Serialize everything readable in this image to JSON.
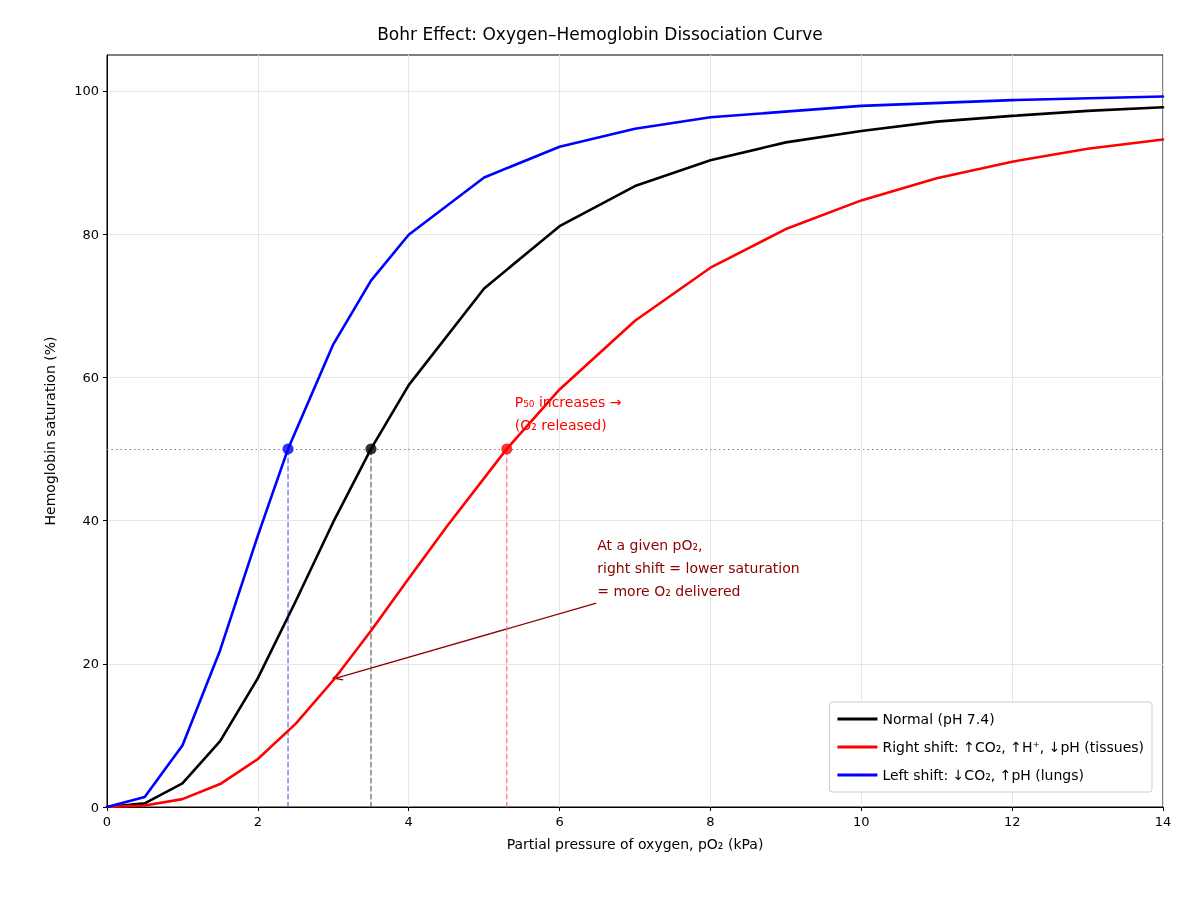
{
  "chart_data": {
    "type": "line",
    "title": "Bohr Effect: Oxygen–Hemoglobin Dissociation Curve",
    "xlabel": "Partial pressure of oxygen, pO₂ (kPa)",
    "ylabel": "Hemoglobin saturation (%)",
    "xlim": [
      0,
      14
    ],
    "xticks": [
      0,
      2,
      4,
      6,
      8,
      10,
      12,
      14
    ],
    "ylim": [
      0,
      105
    ],
    "yticks": [
      0,
      20,
      40,
      60,
      80,
      100
    ],
    "grid": true,
    "legend": "bottom right",
    "series": [
      {
        "name": "Normal (pH 7.4)",
        "color": "#000000",
        "x": [
          0,
          0.5,
          1,
          1.5,
          2,
          2.5,
          3,
          3.5,
          4,
          5,
          6,
          7,
          8,
          9,
          10,
          11,
          12,
          13,
          14
        ],
        "values": [
          0,
          0.5,
          3.3,
          9.2,
          18,
          28.7,
          39.8,
          50,
          58.9,
          72.4,
          81.1,
          86.7,
          90.3,
          92.8,
          94.4,
          95.7,
          96.5,
          97.2,
          97.7
        ]
      },
      {
        "name": "Right shift: ↑CO₂, ↑H⁺, ↓pH (tissues)",
        "color": "#ff0000",
        "x": [
          0,
          0.5,
          1,
          1.5,
          2,
          2.5,
          3,
          3.5,
          4,
          4.5,
          5.3,
          6,
          7,
          8,
          9,
          10,
          11,
          12,
          13,
          14
        ],
        "values": [
          0,
          0.2,
          1.1,
          3.2,
          6.7,
          11.6,
          17.7,
          24.6,
          31.9,
          39.1,
          50,
          58.3,
          67.9,
          75.3,
          80.7,
          84.7,
          87.8,
          90.1,
          91.9,
          93.2
        ]
      },
      {
        "name": "Left shift: ↓CO₂, ↑pH (lungs)",
        "color": "#0000ff",
        "x": [
          0,
          0.5,
          1,
          1.5,
          2,
          2.4,
          3,
          3.5,
          4,
          5,
          6,
          7,
          8,
          10,
          12,
          14
        ],
        "values": [
          0,
          1.4,
          8.6,
          21.9,
          37.9,
          50,
          64.6,
          73.5,
          79.9,
          87.9,
          92.2,
          94.7,
          96.3,
          97.9,
          98.7,
          99.2
        ]
      },
      {
        "type": "line",
        "color": "#5555ff",
        "line_style": "dashed",
        "x": [
          2.4,
          2.4
        ],
        "values": [
          0,
          50
        ]
      },
      {
        "type": "line",
        "color": "#555555",
        "line_style": "dashed",
        "x": [
          3.5,
          3.5
        ],
        "values": [
          0,
          50
        ]
      },
      {
        "type": "line",
        "color": "#ff6666",
        "line_style": "dashed",
        "x": [
          5.3,
          5.3
        ],
        "values": [
          0,
          50
        ]
      },
      {
        "type": "scatter",
        "marker": "circle",
        "colors": [
          "#0000ff",
          "#000000",
          "#ff0000"
        ],
        "x": [
          2.4,
          3.5,
          5.3
        ],
        "values": [
          50,
          50,
          50
        ]
      }
    ],
    "ref_lines": [
      {
        "axis": "y",
        "value": 50,
        "color": "#808080",
        "line_style": "dotted"
      }
    ],
    "annotations": [
      {
        "text": "P₅₀ increases →\n(O₂ released)",
        "x": 5.3,
        "y": 50
      },
      {
        "text": "At a given pO₂,\nright shift = lower saturation\n= more O₂ delivered",
        "x": 3.0,
        "y": 18
      }
    ]
  }
}
